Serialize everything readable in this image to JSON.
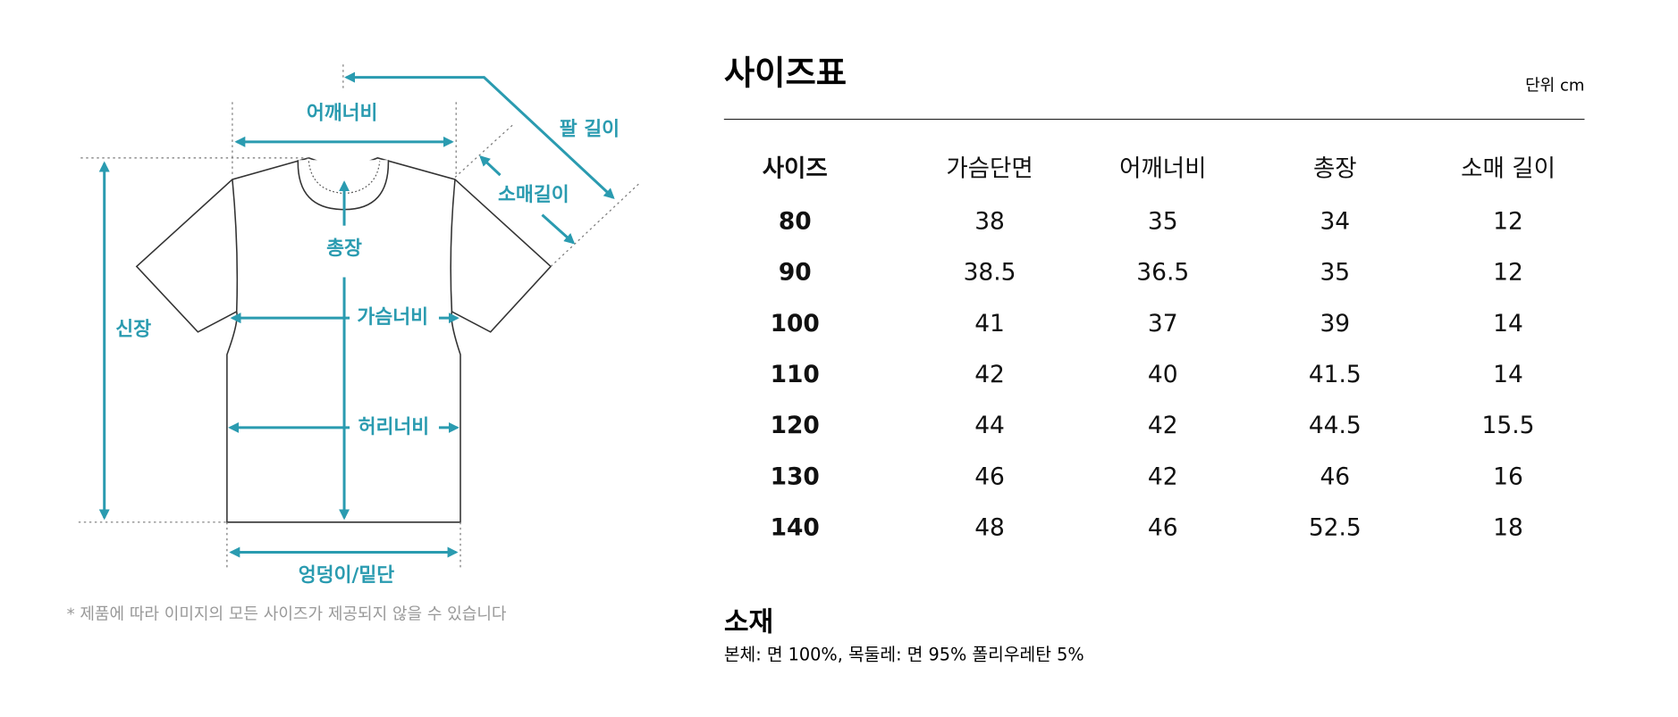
{
  "diagram": {
    "labels": {
      "shoulder": "어깨너비",
      "arm": "팔 길이",
      "sleeve": "소매길이",
      "length": "총장",
      "height": "신장",
      "chest": "가슴너비",
      "waist": "허리너비",
      "hem": "엉덩이/밑단"
    },
    "note": "* 제품에 따라 이미지의 모든 사이즈가 제공되지 않을 수 있습니다"
  },
  "table": {
    "title": "사이즈표",
    "unit": "단위 cm",
    "headers": [
      "사이즈",
      "가슴단면",
      "어깨너비",
      "총장",
      "소매 길이"
    ],
    "rows": [
      [
        80,
        38,
        35,
        34,
        12
      ],
      [
        90,
        38.5,
        36.5,
        35,
        12
      ],
      [
        100,
        41,
        37,
        39,
        14
      ],
      [
        110,
        42,
        40,
        41.5,
        14
      ],
      [
        120,
        44,
        42,
        44.5,
        15.5
      ],
      [
        130,
        46,
        42,
        46,
        16
      ],
      [
        140,
        48,
        46,
        52.5,
        18
      ]
    ]
  },
  "material": {
    "title": "소재",
    "text": "본체: 면 100%, 목둘레: 면 95% 폴리우레탄 5%"
  }
}
